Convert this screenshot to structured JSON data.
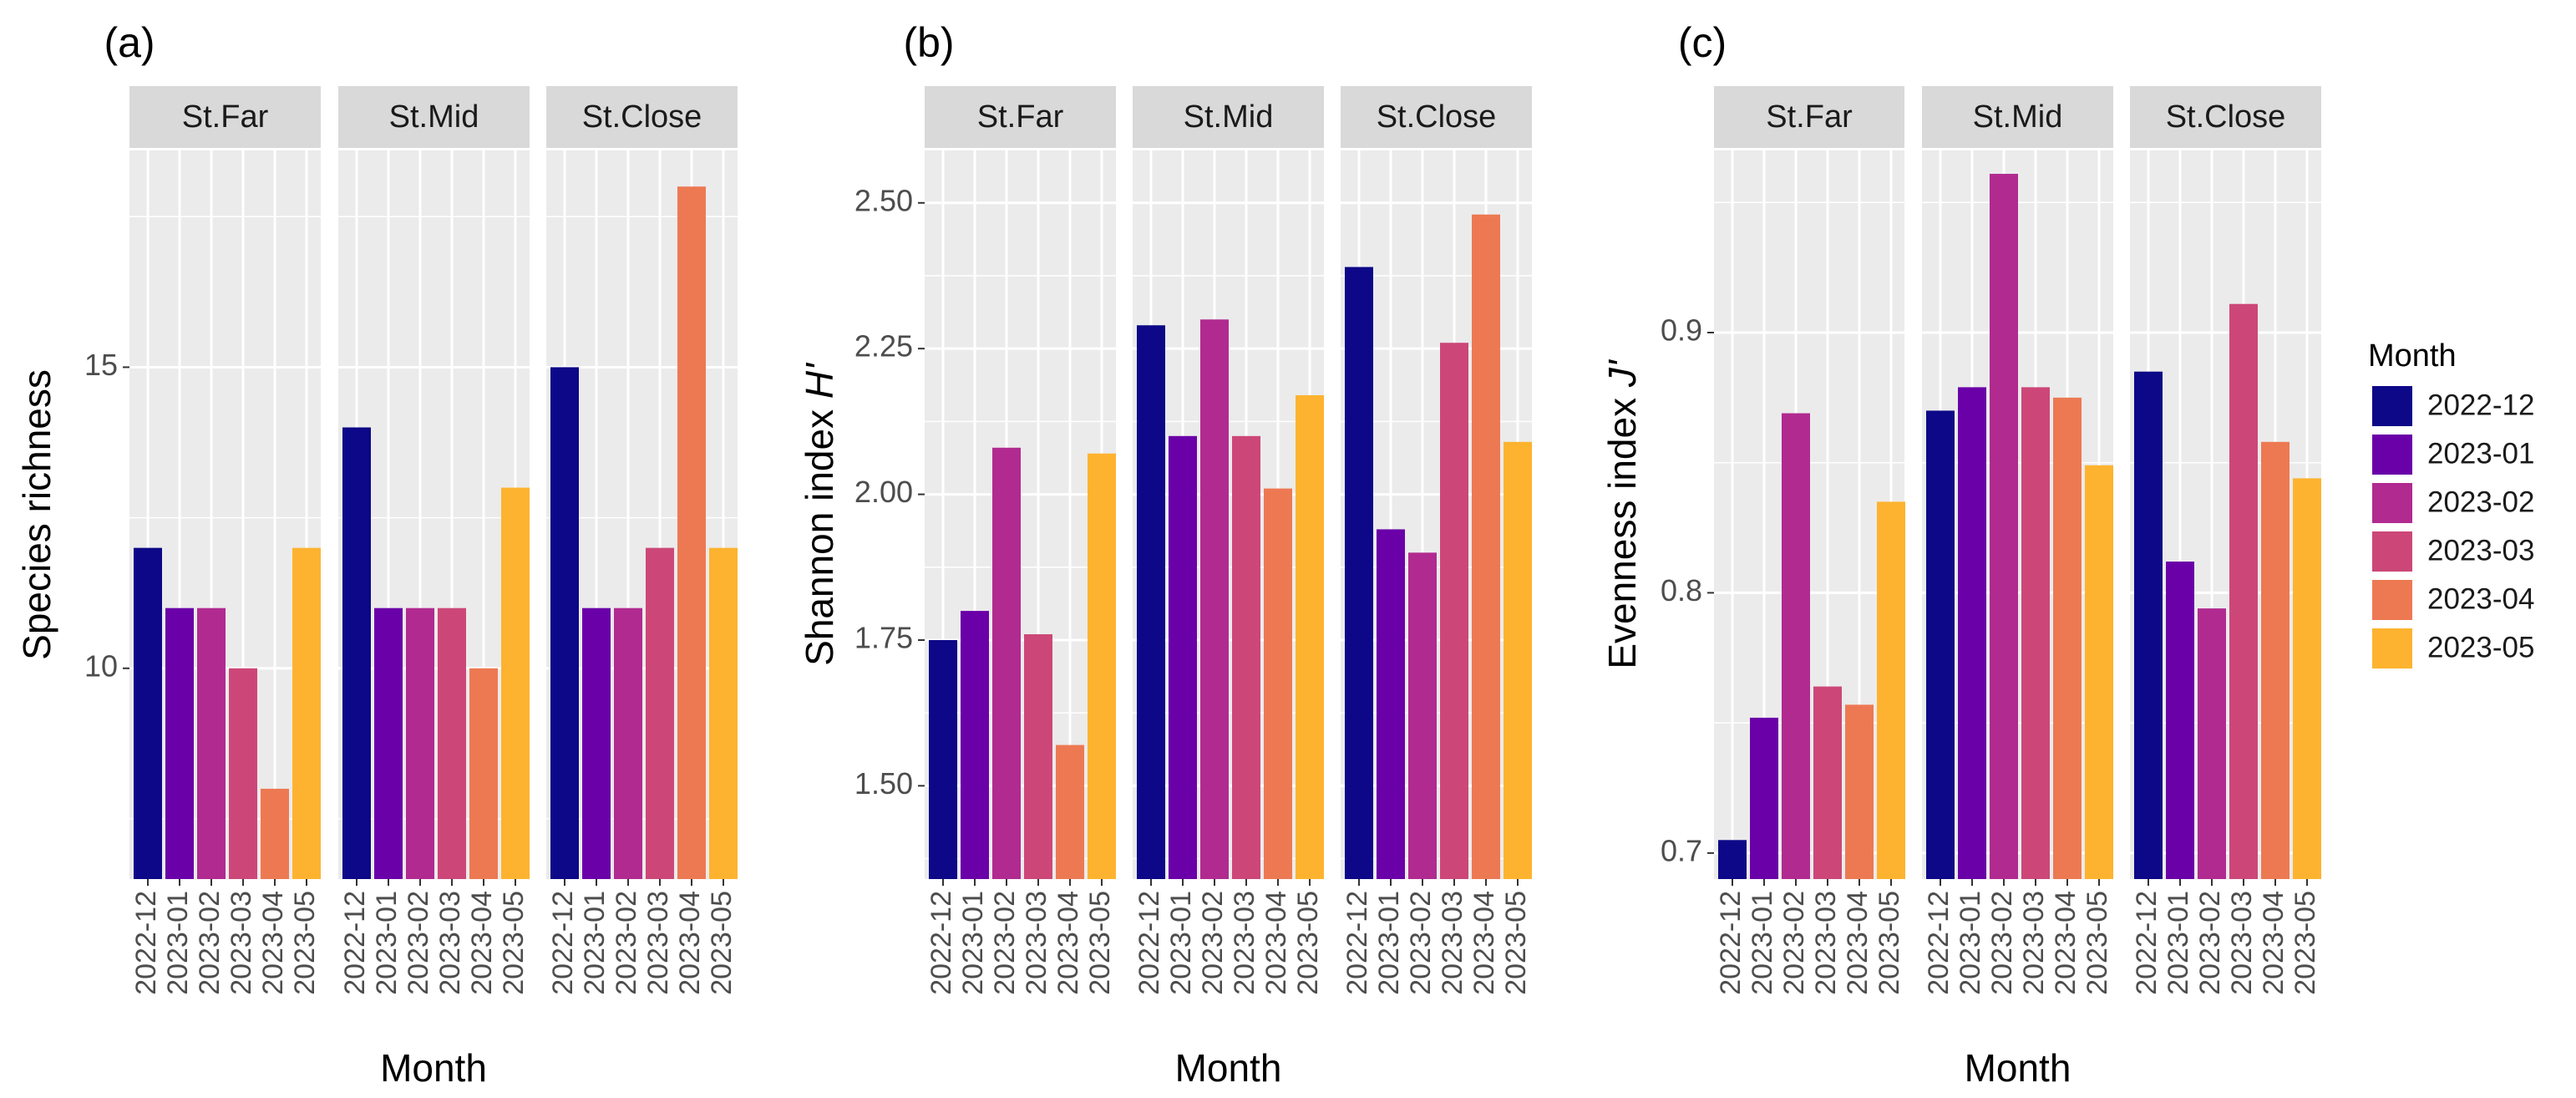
{
  "chart_data": [
    {
      "type": "bar",
      "panel_label": "(a)",
      "facets": [
        "St.Far",
        "St.Mid",
        "St.Close"
      ],
      "categories": [
        "2022-12",
        "2023-01",
        "2023-02",
        "2023-03",
        "2023-04",
        "2023-05"
      ],
      "series": [
        {
          "name": "St.Far",
          "values": [
            12,
            11,
            11,
            10,
            8,
            12
          ]
        },
        {
          "name": "St.Mid",
          "values": [
            14,
            11,
            11,
            11,
            10,
            13
          ]
        },
        {
          "name": "St.Close",
          "values": [
            15,
            11,
            11,
            12,
            18,
            12
          ]
        }
      ],
      "ylabel": "Species richness",
      "ylabel_italic": "",
      "xlabel": "Month",
      "yticks": [
        10,
        15
      ],
      "ytick_labels": [
        "10",
        "15"
      ],
      "ylim": [
        6.5,
        18.6
      ]
    },
    {
      "type": "bar",
      "panel_label": "(b)",
      "facets": [
        "St.Far",
        "St.Mid",
        "St.Close"
      ],
      "categories": [
        "2022-12",
        "2023-01",
        "2023-02",
        "2023-03",
        "2023-04",
        "2023-05"
      ],
      "series": [
        {
          "name": "St.Far",
          "values": [
            1.75,
            1.8,
            2.08,
            1.76,
            1.57,
            2.07
          ]
        },
        {
          "name": "St.Mid",
          "values": [
            2.29,
            2.1,
            2.3,
            2.1,
            2.01,
            2.17
          ]
        },
        {
          "name": "St.Close",
          "values": [
            2.39,
            1.94,
            1.9,
            2.26,
            2.48,
            2.09
          ]
        }
      ],
      "ylabel": "Shannon index ",
      "ylabel_italic": "H'",
      "xlabel": "Month",
      "yticks": [
        1.5,
        1.75,
        2.0,
        2.25,
        2.5
      ],
      "ytick_labels": [
        "1.50",
        "1.75",
        "2.00",
        "2.25",
        "2.50"
      ],
      "ylim": [
        1.34,
        2.59
      ]
    },
    {
      "type": "bar",
      "panel_label": "(c)",
      "facets": [
        "St.Far",
        "St.Mid",
        "St.Close"
      ],
      "categories": [
        "2022-12",
        "2023-01",
        "2023-02",
        "2023-03",
        "2023-04",
        "2023-05"
      ],
      "series": [
        {
          "name": "St.Far",
          "values": [
            0.705,
            0.752,
            0.869,
            0.764,
            0.757,
            0.835
          ]
        },
        {
          "name": "St.Mid",
          "values": [
            0.87,
            0.879,
            0.961,
            0.879,
            0.875,
            0.849
          ]
        },
        {
          "name": "St.Close",
          "values": [
            0.885,
            0.812,
            0.794,
            0.911,
            0.858,
            0.844
          ]
        }
      ],
      "ylabel": "Evenness index ",
      "ylabel_italic": "J'",
      "xlabel": "Month",
      "yticks": [
        0.7,
        0.8,
        0.9
      ],
      "ytick_labels": [
        "0.7",
        "0.8",
        "0.9"
      ],
      "ylim": [
        0.69,
        0.97
      ]
    }
  ],
  "legend": {
    "title": "Month",
    "items": [
      "2022-12",
      "2023-01",
      "2023-02",
      "2023-03",
      "2023-04",
      "2023-05"
    ]
  },
  "colors": {
    "2022-12": "#0d0887",
    "2023-01": "#6a00a8",
    "2023-02": "#b12a90",
    "2023-03": "#cc4778",
    "2023-04": "#ed7953",
    "2023-05": "#fdb32f",
    "panel_bg": "#ebebeb",
    "strip_bg": "#d9d9d9",
    "grid": "#ffffff"
  }
}
